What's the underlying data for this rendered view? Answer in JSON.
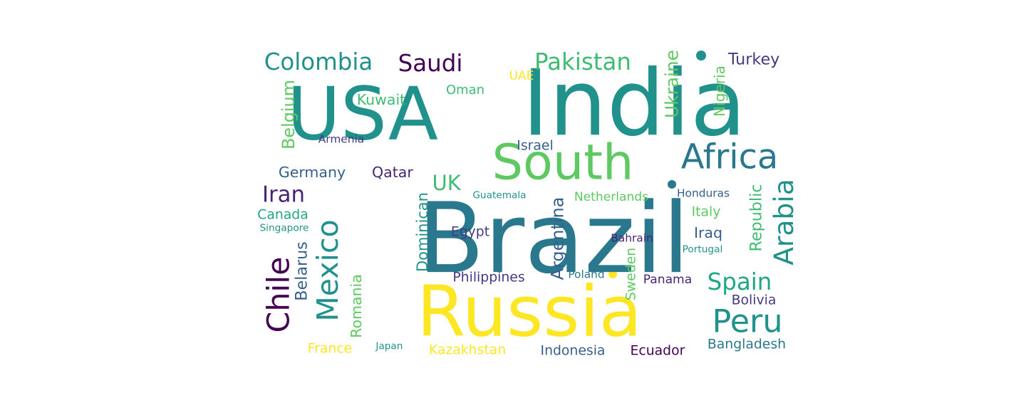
{
  "palette": {
    "yellow": "#fde725",
    "light_green": "#5ec962",
    "green": "#3fbc73",
    "teal_green": "#21a685",
    "teal": "#21918c",
    "steel": "#2a788e",
    "blue": "#355f8d",
    "indigo": "#443983",
    "purple": "#482475",
    "dark_purple": "#440154"
  },
  "words": [
    {
      "text": "USA",
      "color": "teal"
    },
    {
      "text": "India",
      "color": "teal"
    },
    {
      "text": "Brazil",
      "color": "steel"
    },
    {
      "text": "Russia",
      "color": "yellow"
    },
    {
      "text": "South",
      "color": "light_green"
    },
    {
      "text": "Africa",
      "color": "steel"
    },
    {
      "text": "Colombia",
      "color": "teal"
    },
    {
      "text": "Saudi",
      "color": "dark_purple"
    },
    {
      "text": "Pakistan",
      "color": "green"
    },
    {
      "text": "Turkey",
      "color": "indigo"
    },
    {
      "text": "Mexico",
      "color": "teal"
    },
    {
      "text": "Chile",
      "color": "dark_purple"
    },
    {
      "text": "Peru",
      "color": "teal"
    },
    {
      "text": "Spain",
      "color": "teal_green"
    },
    {
      "text": "Iran",
      "color": "purple"
    },
    {
      "text": "Arabia",
      "color": "teal"
    },
    {
      "text": "Germany",
      "color": "blue"
    },
    {
      "text": "Qatar",
      "color": "purple"
    },
    {
      "text": "UK",
      "color": "green"
    },
    {
      "text": "Kuwait",
      "color": "green"
    },
    {
      "text": "Oman",
      "color": "green"
    },
    {
      "text": "UAE",
      "color": "yellow"
    },
    {
      "text": "Israel",
      "color": "blue"
    },
    {
      "text": "Belgium",
      "color": "light_green"
    },
    {
      "text": "Armenia",
      "color": "indigo"
    },
    {
      "text": "Ukraine",
      "color": "light_green"
    },
    {
      "text": "Nigeria",
      "color": "light_green"
    },
    {
      "text": "Canada",
      "color": "teal_green"
    },
    {
      "text": "Singapore",
      "color": "teal"
    },
    {
      "text": "Guatemala",
      "color": "teal"
    },
    {
      "text": "Netherlands",
      "color": "light_green"
    },
    {
      "text": "Honduras",
      "color": "blue"
    },
    {
      "text": "Italy",
      "color": "light_green"
    },
    {
      "text": "Iraq",
      "color": "blue"
    },
    {
      "text": "Egypt",
      "color": "indigo"
    },
    {
      "text": "Dominican",
      "color": "teal"
    },
    {
      "text": "Argentina",
      "color": "blue"
    },
    {
      "text": "Republic",
      "color": "green"
    },
    {
      "text": "Bahrain",
      "color": "purple"
    },
    {
      "text": "Portugal",
      "color": "teal"
    },
    {
      "text": "Belarus",
      "color": "blue"
    },
    {
      "text": "Philippines",
      "color": "indigo"
    },
    {
      "text": "Poland",
      "color": "steel"
    },
    {
      "text": "Sweden",
      "color": "light_green"
    },
    {
      "text": "Panama",
      "color": "purple"
    },
    {
      "text": "Romania",
      "color": "light_green"
    },
    {
      "text": "Bolivia",
      "color": "indigo"
    },
    {
      "text": "Bangladesh",
      "color": "steel"
    },
    {
      "text": "France",
      "color": "yellow"
    },
    {
      "text": "Japan",
      "color": "teal"
    },
    {
      "text": "Kazakhstan",
      "color": "yellow"
    },
    {
      "text": "Indonesia",
      "color": "blue"
    },
    {
      "text": "Ecuador",
      "color": "dark_purple"
    }
  ]
}
